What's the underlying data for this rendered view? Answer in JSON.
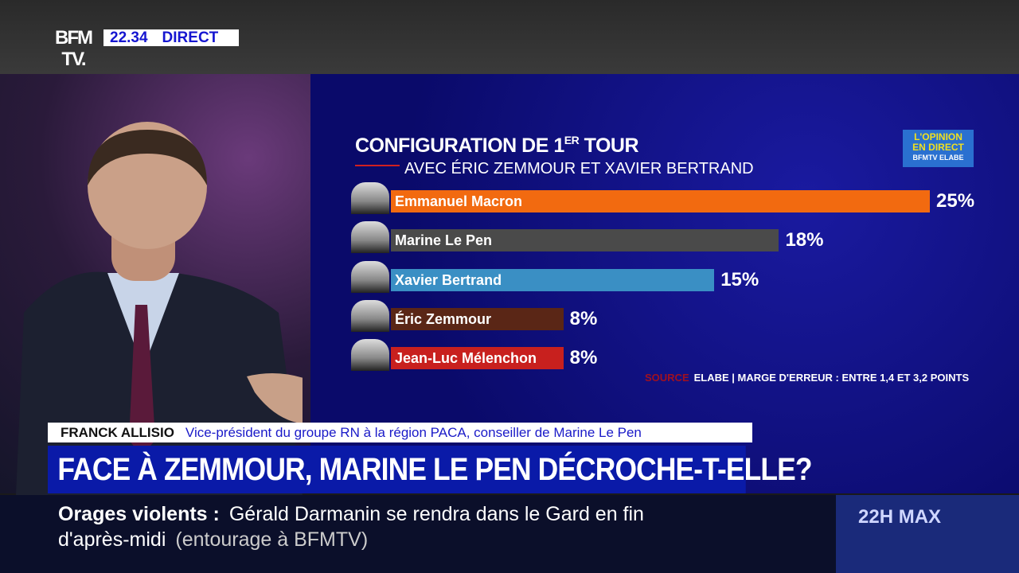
{
  "header": {
    "logo": "BFM TV.",
    "time": "22.34",
    "live": "DIRECT"
  },
  "chart_data": {
    "type": "bar",
    "orientation": "horizontal",
    "title": "CONFIGURATION DE 1ER TOUR",
    "title_main": "CONFIGURATION DE 1",
    "title_sup": "ER",
    "title_end": " TOUR",
    "subtitle": "AVEC ÉRIC ZEMMOUR ET XAVIER BERTRAND",
    "categories": [
      "Emmanuel Macron",
      "Marine Le Pen",
      "Xavier Bertrand",
      "Éric Zemmour",
      "Jean-Luc Mélenchon"
    ],
    "values": [
      25,
      18,
      15,
      8,
      8
    ],
    "labels": [
      "25%",
      "18%",
      "15%",
      "8%",
      "8%"
    ],
    "colors": [
      "#f26a10",
      "#4a4a4a",
      "#3a8fc4",
      "#5a2616",
      "#c8201e"
    ],
    "xlim": [
      0,
      25
    ],
    "source_label": "SOURCE",
    "source": "ELABE | MARGE D'ERREUR : ENTRE 1,4 ET 3,2 POINTS"
  },
  "badge": {
    "line1": "L'OPINION",
    "line2": "EN DIRECT",
    "line3": "BFMTV ELABE"
  },
  "guest": {
    "name": "FRANCK ALLISIO",
    "role": "Vice-président du groupe RN à la région PACA, conseiller de Marine Le Pen"
  },
  "headline": "FACE À ZEMMOUR, MARINE LE PEN DÉCROCHE-T-ELLE?",
  "ticker": {
    "topic": "Orages violents :",
    "text1": "Gérald Darmanin se rendra dans le Gard en fin",
    "text2": "d'après-midi",
    "source": "(entourage à BFMTV)"
  },
  "program": "22H MAX"
}
